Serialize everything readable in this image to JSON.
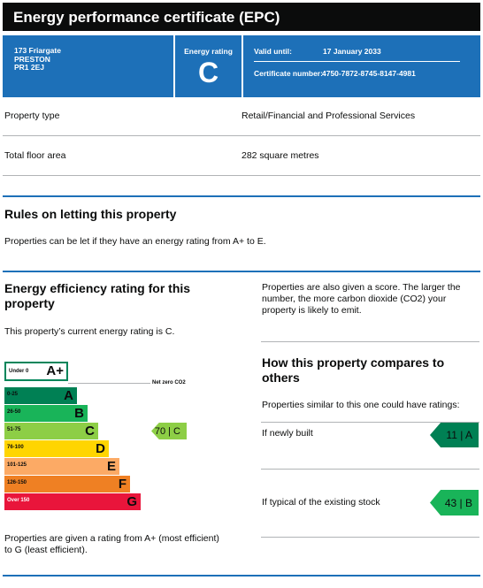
{
  "header": {
    "title": "Energy performance certificate (EPC)"
  },
  "address": [
    "173 Friargate",
    "PRESTON",
    "PR1 2EJ"
  ],
  "energy_rating": {
    "label": "Energy rating",
    "value": "C"
  },
  "valid_until": {
    "label": "Valid until:",
    "value": "17 January 2033"
  },
  "certificate_number": {
    "label": "Certificate number:",
    "value": "4750-7872-8745-8147-4981"
  },
  "details": [
    {
      "label": "Property type",
      "value": "Retail/Financial and Professional Services"
    },
    {
      "label": "Total floor area",
      "value": "282 square metres"
    }
  ],
  "rules": {
    "title": "Rules on letting this property",
    "text": "Properties can be let if they have an energy rating from A+ to E."
  },
  "efficiency": {
    "title": "Energy efficiency rating for this property",
    "current": "This property’s current energy rating is C.",
    "bands": [
      {
        "range": "Under 0",
        "letter": "A+"
      },
      {
        "range": "0-25",
        "letter": "A"
      },
      {
        "range": "26-50",
        "letter": "B"
      },
      {
        "range": "51-75",
        "letter": "C"
      },
      {
        "range": "76-100",
        "letter": "D"
      },
      {
        "range": "101-125",
        "letter": "E"
      },
      {
        "range": "126-150",
        "letter": "F"
      },
      {
        "range": "Over 150",
        "letter": "G"
      }
    ],
    "net_zero": "Net zero CO2",
    "current_marker": "70 | C",
    "footer": "Properties are given a rating from A+ (most efficient) to G (least efficient)."
  },
  "score_text": "Properties are also given a score. The larger the number, the more carbon dioxide (CO2) your property is likely to emit.",
  "compare": {
    "title": "How this property compares to others",
    "intro": "Properties similar to this one could have ratings:",
    "rows": [
      {
        "label": "If newly built",
        "value": "11 | A"
      },
      {
        "label": "If typical of the existing stock",
        "value": "43 | B"
      }
    ]
  }
}
